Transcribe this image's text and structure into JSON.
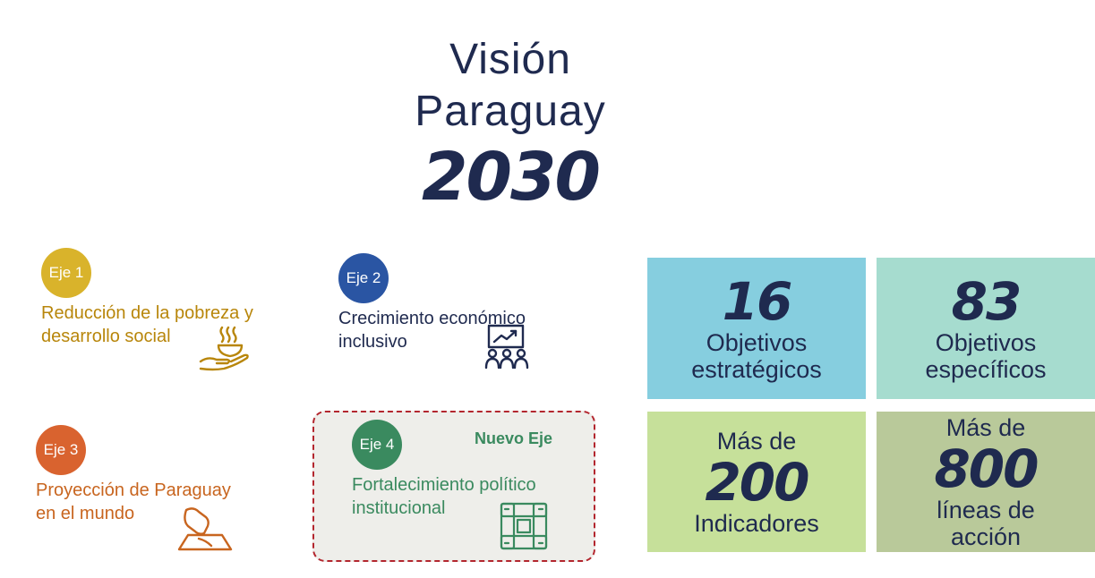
{
  "title": {
    "line1": "Visión",
    "line2": "Paraguay",
    "year": "2030"
  },
  "ejes": [
    {
      "badge": "Eje 1",
      "line1": "Reducción de la pobreza y",
      "line2": "desarrollo social",
      "color": "#d9b32b",
      "text_color": "#b8860b",
      "icon": "hand-bowl-icon"
    },
    {
      "badge": "Eje 2",
      "line1": "Crecimiento económico",
      "line2": "inclusivo",
      "color": "#2a55a3",
      "text_color": "#1f2a4f",
      "icon": "presentation-chart-icon"
    },
    {
      "badge": "Eje 3",
      "line1": "Proyección de Paraguay",
      "line2": "en el mundo",
      "color": "#d9632f",
      "text_color": "#c8651f",
      "icon": "map-icon"
    },
    {
      "badge": "Eje 4",
      "line1": "Fortalecimiento político",
      "line2": "institucional",
      "color": "#3a8a5f",
      "text_color": "#3a8a5f",
      "icon": "joined-hands-icon",
      "tag": "Nuevo Eje"
    }
  ],
  "stats": [
    {
      "number": "16",
      "line1": "Objetivos",
      "line2": "estratégicos",
      "color": "#86cedf"
    },
    {
      "number": "83",
      "line1": "Objetivos",
      "line2": "específicos",
      "color": "#a6dccf"
    },
    {
      "prefix": "Más de",
      "number": "200",
      "line1": "Indicadores",
      "color": "#c6e09a"
    },
    {
      "prefix": "Más de",
      "number": "800",
      "line1": "líneas de",
      "line2": "acción",
      "color": "#b9c99a"
    }
  ]
}
